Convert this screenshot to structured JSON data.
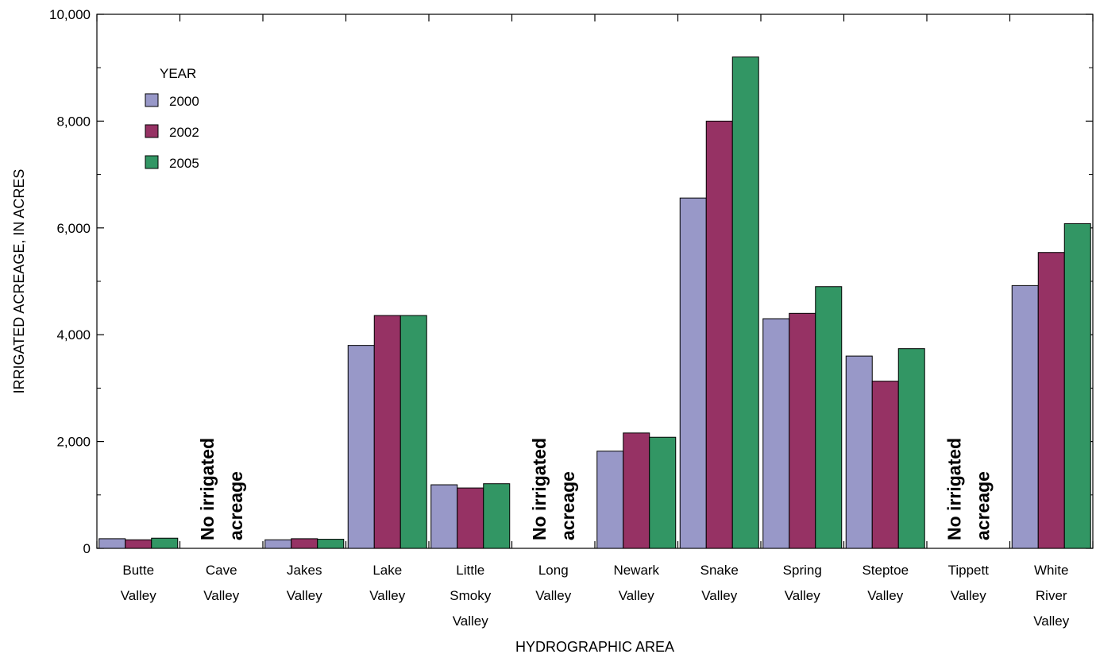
{
  "chart_data": {
    "type": "bar",
    "xlabel": "HYDROGRAPHIC AREA",
    "ylabel": "IRRIGATED ACREAGE, IN ACRES",
    "ylim": [
      0,
      10000
    ],
    "yticks": [
      0,
      2000,
      4000,
      6000,
      8000,
      10000
    ],
    "ytick_labels": [
      "0",
      "2,000",
      "4,000",
      "6,000",
      "8,000",
      "10,000"
    ],
    "legend": {
      "title": "YEAR",
      "placement": "top-left"
    },
    "categories": [
      [
        "Butte",
        "Valley"
      ],
      [
        "Cave",
        "Valley"
      ],
      [
        "Jakes",
        "Valley"
      ],
      [
        "Lake",
        "Valley"
      ],
      [
        "Little",
        "Smoky",
        "Valley"
      ],
      [
        "Long",
        "Valley"
      ],
      [
        "Newark",
        "Valley"
      ],
      [
        "Snake",
        "Valley"
      ],
      [
        "Spring",
        "Valley"
      ],
      [
        "Steptoe",
        "Valley"
      ],
      [
        "Tippett",
        "Valley"
      ],
      [
        "White",
        "River",
        "Valley"
      ]
    ],
    "series": [
      {
        "name": "2000",
        "color": "#9898c8",
        "values": [
          180,
          null,
          160,
          3800,
          1190,
          null,
          1820,
          6560,
          4300,
          3600,
          null,
          4920
        ]
      },
      {
        "name": "2002",
        "color": "#963264",
        "values": [
          160,
          null,
          180,
          4360,
          1130,
          null,
          2160,
          8000,
          4400,
          3130,
          null,
          5540
        ]
      },
      {
        "name": "2005",
        "color": "#329664",
        "values": [
          190,
          null,
          170,
          4360,
          1210,
          null,
          2080,
          9200,
          4900,
          3740,
          null,
          6080
        ]
      }
    ],
    "annotations": [
      {
        "category_index": 1,
        "lines": [
          "No irrigated",
          "acreage"
        ]
      },
      {
        "category_index": 5,
        "lines": [
          "No irrigated",
          "acreage"
        ]
      },
      {
        "category_index": 10,
        "lines": [
          "No irrigated",
          "acreage"
        ]
      }
    ]
  }
}
